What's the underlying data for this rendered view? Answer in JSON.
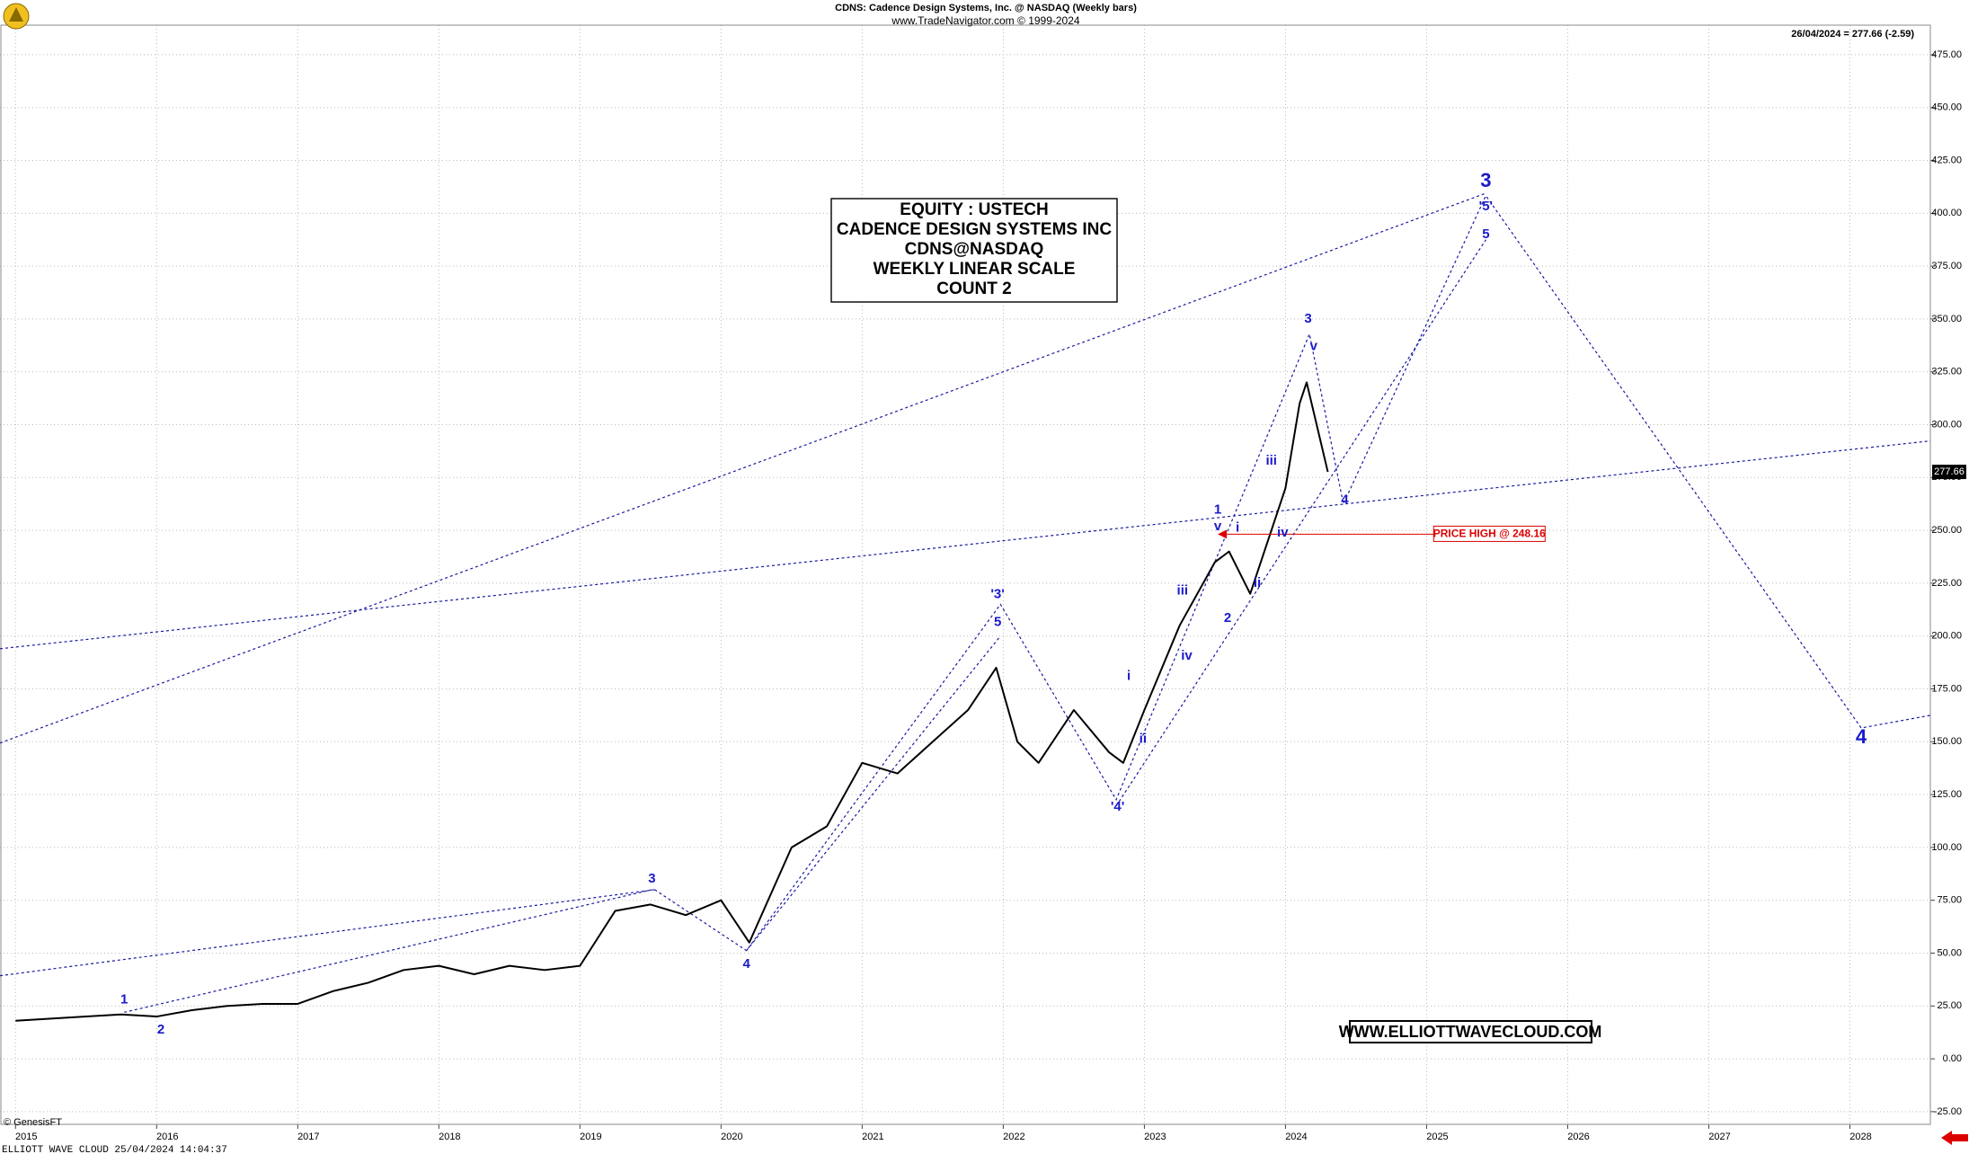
{
  "chart_data": {
    "type": "line",
    "title": "CDNS:  Cadence Design Systems, Inc. @ NASDAQ  (Weekly bars)",
    "subtitle": "www.TradeNavigator.com © 1999-2024",
    "last_quote": "26/04/2024 = 277.66 (-2.59)",
    "last_price": 277.66,
    "box_lines": [
      "EQUITY : USTECH",
      "CADENCE DESIGN SYSTEMS INC",
      "CDNS@NASDAQ",
      "WEEKLY LINEAR SCALE",
      "COUNT 2"
    ],
    "website": "WWW.ELLIOTTWAVECLOUD.COM",
    "copyright": "© GenesisFT",
    "footer": "ELLIOTT WAVE CLOUD   25/04/2024 14:04:37",
    "price_high": {
      "value": 248.16,
      "label": "PRICE HIGH @ 248.16",
      "x": [
        2023.52,
        2025.05
      ]
    },
    "color": "#000000",
    "wave_color": "#1a1aa0",
    "grid": true,
    "xlim": [
      2014.89,
      2028.57
    ],
    "ylim": [
      -31,
      489
    ],
    "xticks": [
      2015,
      2016,
      2017,
      2018,
      2019,
      2020,
      2021,
      2022,
      2023,
      2024,
      2025,
      2026,
      2027,
      2028
    ],
    "yticks": [
      {
        "value": -25,
        "label": "-25.00"
      },
      {
        "value": 0,
        "label": "0.00"
      },
      {
        "value": 25,
        "label": "25.00"
      },
      {
        "value": 50,
        "label": "50.00"
      },
      {
        "value": 75,
        "label": "75.00"
      },
      {
        "value": 100,
        "label": "100.00"
      },
      {
        "value": 125,
        "label": "125.00"
      },
      {
        "value": 150,
        "label": "150.00"
      },
      {
        "value": 175,
        "label": "175.00"
      },
      {
        "value": 200,
        "label": "200.00"
      },
      {
        "value": 225,
        "label": "225.00"
      },
      {
        "value": 250,
        "label": "250.00"
      },
      {
        "value": 275,
        "label": "275.00"
      },
      {
        "value": 300,
        "label": "300.00"
      },
      {
        "value": 325,
        "label": "325.00"
      },
      {
        "value": 350,
        "label": "350.00"
      },
      {
        "value": 375,
        "label": "375.00"
      },
      {
        "value": 400,
        "label": "400.00"
      },
      {
        "value": 425,
        "label": "425.00"
      },
      {
        "value": 450,
        "label": "450.00"
      },
      {
        "value": 475,
        "label": "475.00"
      }
    ],
    "x": [
      2015.0,
      2015.25,
      2015.5,
      2015.75,
      2016.0,
      2016.25,
      2016.5,
      2016.75,
      2017.0,
      2017.25,
      2017.5,
      2017.75,
      2018.0,
      2018.25,
      2018.5,
      2018.75,
      2019.0,
      2019.25,
      2019.5,
      2019.75,
      2020.0,
      2020.2,
      2020.5,
      2020.75,
      2021.0,
      2021.25,
      2021.5,
      2021.75,
      2021.95,
      2022.1,
      2022.25,
      2022.5,
      2022.75,
      2022.85,
      2023.0,
      2023.25,
      2023.5,
      2023.6,
      2023.75,
      2024.0,
      2024.1,
      2024.15,
      2024.3
    ],
    "values": [
      18,
      19,
      20,
      21,
      20,
      23,
      25,
      26,
      26,
      32,
      36,
      42,
      44,
      40,
      44,
      42,
      44,
      70,
      73,
      68,
      75,
      55,
      100,
      110,
      140,
      135,
      150,
      165,
      185,
      150,
      140,
      165,
      145,
      140,
      165,
      205,
      235,
      240,
      220,
      270,
      310,
      320,
      277.66
    ],
    "trendlines": [
      {
        "x": [
          2014.89,
          2025.42
        ],
        "y": [
          149.4,
          409.5
        ]
      },
      {
        "x": [
          2014.89,
          2028.57
        ],
        "y": [
          194,
          292.3
        ]
      },
      {
        "x": [
          2014.89,
          2019.53
        ],
        "y": [
          39.3,
          80
        ]
      },
      {
        "x": [
          2015.77,
          2019.51
        ],
        "y": [
          22,
          80
        ]
      },
      {
        "x": [
          2019.53,
          2020.18,
          2021.98,
          2022.8,
          2024.17,
          2024.41,
          2025.42,
          2028.08,
          2028.57
        ],
        "y": [
          80,
          51.2,
          215,
          122.6,
          342.9,
          262.5,
          408.3,
          156.5,
          162.5
        ]
      },
      {
        "x": [
          2022.8,
          2025.42
        ],
        "y": [
          119.6,
          387.5
        ]
      },
      {
        "x": [
          2020.18,
          2021.98
        ],
        "y": [
          51.2,
          200
        ]
      }
    ],
    "annotations": [
      {
        "text": "1",
        "x": 2015.77,
        "y": 27.9
      },
      {
        "text": "2",
        "x": 2016.03,
        "y": 13.7
      },
      {
        "text": "3",
        "x": 2019.51,
        "y": 85.1
      },
      {
        "text": "4",
        "x": 2020.18,
        "y": 44.6
      },
      {
        "text": "5",
        "x": 2021.96,
        "y": 206.5
      },
      {
        "text": "'3'",
        "x": 2021.96,
        "y": 219.6
      },
      {
        "text": "'4'",
        "x": 2022.81,
        "y": 119.0
      },
      {
        "text": "i",
        "x": 2022.89,
        "y": 181
      },
      {
        "text": "ii",
        "x": 2022.99,
        "y": 151.2
      },
      {
        "text": "iii",
        "x": 2023.27,
        "y": 221.4
      },
      {
        "text": "iv",
        "x": 2023.3,
        "y": 190.5
      },
      {
        "text": "1",
        "x": 2023.52,
        "y": 259.5
      },
      {
        "text": "v",
        "x": 2023.52,
        "y": 251.8
      },
      {
        "text": "i",
        "x": 2023.66,
        "y": 251.2
      },
      {
        "text": "2",
        "x": 2023.59,
        "y": 208.3
      },
      {
        "text": "ii",
        "x": 2023.8,
        "y": 225
      },
      {
        "text": "iii",
        "x": 2023.9,
        "y": 282.7
      },
      {
        "text": "iv",
        "x": 2023.98,
        "y": 248.8
      },
      {
        "text": "3",
        "x": 2024.16,
        "y": 350
      },
      {
        "text": "v",
        "x": 2024.2,
        "y": 336.9
      },
      {
        "text": "4",
        "x": 2024.42,
        "y": 264.3
      },
      {
        "text": "'5'",
        "x": 2025.42,
        "y": 403
      },
      {
        "text": "5",
        "x": 2025.42,
        "y": 389.9
      }
    ],
    "major_labels": [
      {
        "text": "3",
        "x": 2025.42,
        "y": 414.9
      },
      {
        "text": "4",
        "x": 2028.08,
        "y": 151.8
      }
    ]
  }
}
